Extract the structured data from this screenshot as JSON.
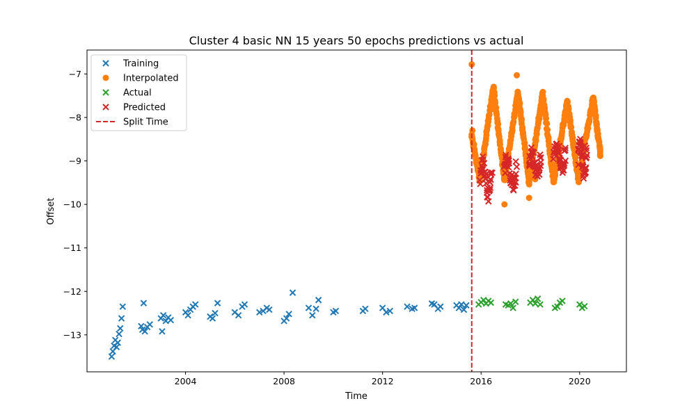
{
  "chart_data": {
    "type": "scatter",
    "title": "Cluster 4 basic NN 15 years 50 epochs predictions vs actual",
    "xlabel": "Time",
    "ylabel": "Offset",
    "xlim": [
      2000.0,
      2021.9
    ],
    "ylim": [
      -13.85,
      -6.45
    ],
    "x_ticks": [
      2004,
      2008,
      2012,
      2016,
      2020
    ],
    "y_ticks": [
      -13,
      -12,
      -11,
      -10,
      -9,
      -8,
      -7
    ],
    "grid": false,
    "legend_position": "top-left",
    "split_time": 2015.62,
    "series": [
      {
        "name": "Training",
        "marker": "x",
        "color": "#1f77b4",
        "points": [
          [
            2001.0,
            -13.5
          ],
          [
            2001.05,
            -13.38
          ],
          [
            2001.1,
            -13.25
          ],
          [
            2001.15,
            -13.12
          ],
          [
            2001.2,
            -13.28
          ],
          [
            2001.25,
            -13.18
          ],
          [
            2001.3,
            -12.98
          ],
          [
            2001.35,
            -12.85
          ],
          [
            2001.4,
            -12.62
          ],
          [
            2001.45,
            -12.35
          ],
          [
            2002.2,
            -12.8
          ],
          [
            2002.25,
            -12.88
          ],
          [
            2002.3,
            -12.27
          ],
          [
            2002.35,
            -12.92
          ],
          [
            2002.45,
            -12.82
          ],
          [
            2002.55,
            -12.76
          ],
          [
            2003.0,
            -12.62
          ],
          [
            2003.05,
            -12.92
          ],
          [
            2003.1,
            -12.55
          ],
          [
            2003.2,
            -12.68
          ],
          [
            2003.3,
            -12.6
          ],
          [
            2003.4,
            -12.66
          ],
          [
            2004.0,
            -12.48
          ],
          [
            2004.1,
            -12.55
          ],
          [
            2004.2,
            -12.42
          ],
          [
            2004.3,
            -12.35
          ],
          [
            2004.4,
            -12.3
          ],
          [
            2005.0,
            -12.58
          ],
          [
            2005.1,
            -12.62
          ],
          [
            2005.2,
            -12.5
          ],
          [
            2005.3,
            -12.27
          ],
          [
            2006.0,
            -12.48
          ],
          [
            2006.15,
            -12.55
          ],
          [
            2006.3,
            -12.35
          ],
          [
            2006.4,
            -12.3
          ],
          [
            2007.0,
            -12.48
          ],
          [
            2007.15,
            -12.45
          ],
          [
            2007.3,
            -12.38
          ],
          [
            2007.4,
            -12.42
          ],
          [
            2008.0,
            -12.68
          ],
          [
            2008.1,
            -12.62
          ],
          [
            2008.2,
            -12.52
          ],
          [
            2008.35,
            -12.03
          ],
          [
            2009.0,
            -12.38
          ],
          [
            2009.15,
            -12.55
          ],
          [
            2009.3,
            -12.4
          ],
          [
            2009.4,
            -12.2
          ],
          [
            2010.0,
            -12.48
          ],
          [
            2010.1,
            -12.45
          ],
          [
            2011.2,
            -12.45
          ],
          [
            2011.3,
            -12.4
          ],
          [
            2012.0,
            -12.38
          ],
          [
            2012.15,
            -12.48
          ],
          [
            2012.3,
            -12.45
          ],
          [
            2013.0,
            -12.35
          ],
          [
            2013.2,
            -12.4
          ],
          [
            2013.3,
            -12.38
          ],
          [
            2014.0,
            -12.28
          ],
          [
            2014.1,
            -12.3
          ],
          [
            2014.25,
            -12.4
          ],
          [
            2014.35,
            -12.35
          ],
          [
            2015.0,
            -12.32
          ],
          [
            2015.1,
            -12.38
          ],
          [
            2015.2,
            -12.3
          ],
          [
            2015.3,
            -12.42
          ],
          [
            2015.4,
            -12.32
          ]
        ]
      },
      {
        "name": "Interpolated",
        "marker": "o",
        "color": "#ff7f0e",
        "segments": [
          [
            2015.62,
            -8.4,
            2015.95,
            -9.45
          ],
          [
            2015.95,
            -9.45,
            2016.5,
            -7.3
          ],
          [
            2016.5,
            -7.3,
            2016.95,
            -9.45
          ],
          [
            2016.95,
            -9.45,
            2017.5,
            -7.4
          ],
          [
            2017.5,
            -7.4,
            2017.95,
            -9.5
          ],
          [
            2017.95,
            -9.5,
            2018.5,
            -7.45
          ],
          [
            2018.5,
            -7.45,
            2018.95,
            -9.5
          ],
          [
            2018.95,
            -9.5,
            2019.5,
            -7.6
          ],
          [
            2019.5,
            -7.6,
            2019.95,
            -9.45
          ],
          [
            2019.95,
            -9.45,
            2020.55,
            -7.55
          ],
          [
            2020.55,
            -7.55,
            2020.85,
            -8.85
          ]
        ],
        "segment_density": 45,
        "points": [
          [
            2015.62,
            -6.78
          ],
          [
            2015.65,
            -8.3
          ],
          [
            2016.95,
            -10.0
          ],
          [
            2017.45,
            -7.03
          ],
          [
            2017.95,
            -9.85
          ],
          [
            2018.2,
            -9.42
          ]
        ]
      },
      {
        "name": "Actual",
        "marker": "x",
        "color": "#2ca02c",
        "points": [
          [
            2015.9,
            -12.3
          ],
          [
            2016.0,
            -12.25
          ],
          [
            2016.1,
            -12.2
          ],
          [
            2016.2,
            -12.28
          ],
          [
            2016.3,
            -12.22
          ],
          [
            2016.4,
            -12.26
          ],
          [
            2017.0,
            -12.3
          ],
          [
            2017.1,
            -12.32
          ],
          [
            2017.2,
            -12.28
          ],
          [
            2017.3,
            -12.38
          ],
          [
            2017.4,
            -12.24
          ],
          [
            2018.0,
            -12.26
          ],
          [
            2018.1,
            -12.2
          ],
          [
            2018.2,
            -12.28
          ],
          [
            2018.3,
            -12.17
          ],
          [
            2018.4,
            -12.3
          ],
          [
            2019.0,
            -12.38
          ],
          [
            2019.1,
            -12.35
          ],
          [
            2019.2,
            -12.26
          ],
          [
            2019.3,
            -12.22
          ],
          [
            2020.0,
            -12.3
          ],
          [
            2020.1,
            -12.38
          ],
          [
            2020.2,
            -12.34
          ]
        ]
      },
      {
        "name": "Predicted",
        "marker": "x",
        "color": "#d62728",
        "clusters": [
          [
            2015.95,
            2016.45,
            -9.75,
            -9.05
          ],
          [
            2016.95,
            2017.45,
            -9.55,
            -8.95
          ],
          [
            2017.95,
            2018.45,
            -9.25,
            -8.85
          ],
          [
            2018.95,
            2019.45,
            -9.15,
            -8.65
          ],
          [
            2019.95,
            2020.3,
            -9.25,
            -8.6
          ]
        ],
        "cluster_density": 40,
        "points": [
          [
            2016.3,
            -9.93
          ],
          [
            2020.2,
            -8.65
          ]
        ]
      },
      {
        "name": "Split Time",
        "marker": "line",
        "color": "#d62728"
      }
    ]
  }
}
